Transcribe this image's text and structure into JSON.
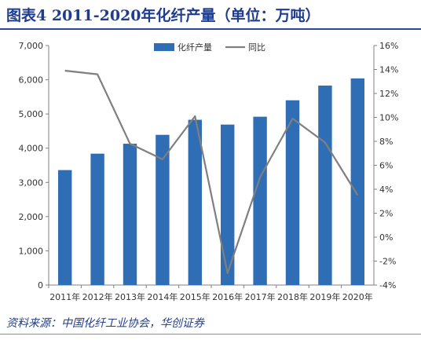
{
  "title": "图表4 2011-2020年化纤产量（单位：万吨）",
  "source": "资料来源：中国化纤工业协会，华创证券",
  "chart_data": {
    "type": "bar",
    "categories": [
      "2011年",
      "2012年",
      "2013年",
      "2014年",
      "2015年",
      "2016年",
      "2017年",
      "2018年",
      "2019年",
      "2020年"
    ],
    "series": [
      {
        "name": "化纤产量",
        "type": "bar",
        "axis": "left",
        "color": "#2f6db5",
        "values": [
          3360,
          3840,
          4130,
          4390,
          4830,
          4690,
          4920,
          5400,
          5830,
          6040
        ]
      },
      {
        "name": "同比",
        "type": "line",
        "axis": "right",
        "color": "#7f7f7f",
        "values": [
          13.9,
          13.6,
          7.8,
          6.5,
          10.1,
          -3.0,
          5.0,
          9.9,
          7.9,
          3.5
        ]
      }
    ],
    "yleft": {
      "lim": [
        0,
        7000
      ],
      "ticks": [
        "0",
        "1,000",
        "2,000",
        "3,000",
        "4,000",
        "5,000",
        "6,000",
        "7,000"
      ]
    },
    "yright": {
      "lim": [
        -4,
        16
      ],
      "ticks": [
        "-4%",
        "-2%",
        "0%",
        "2%",
        "4%",
        "6%",
        "8%",
        "10%",
        "12%",
        "14%",
        "16%"
      ]
    },
    "legend_position": "top-center",
    "grid": false
  }
}
